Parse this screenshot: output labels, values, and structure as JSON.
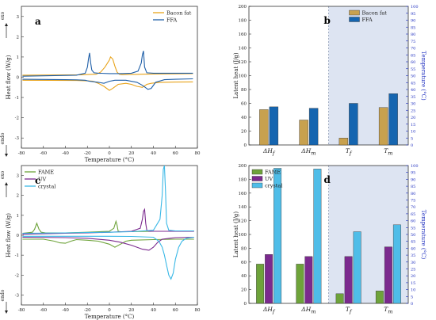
{
  "chart_data": [
    {
      "panel": "a",
      "type": "line",
      "xlabel": "Temperature (°C)",
      "ylabel": "Heat flow (W/g)",
      "exo_label": "exo",
      "endo_label": "endo",
      "xlim": [
        -80,
        80
      ],
      "ylim": [
        -3.5,
        3.5
      ],
      "xticks": [
        -80,
        -60,
        -40,
        -20,
        0,
        20,
        40,
        60,
        80
      ],
      "yticks": [
        -3,
        -2,
        -1,
        0,
        1,
        2,
        3
      ],
      "legend_position": "top-right",
      "series": [
        {
          "name": "Bacon fat",
          "color": "#e8a31a",
          "x": [
            -79,
            -25,
            -18,
            -12,
            -8,
            -4,
            0,
            1,
            3,
            5,
            7,
            9,
            12,
            18,
            24,
            30,
            40,
            60,
            76
          ],
          "y": [
            0.1,
            0.12,
            0.14,
            0.15,
            0.25,
            0.5,
            0.85,
            1.0,
            0.9,
            0.55,
            0.25,
            0.15,
            0.13,
            0.14,
            0.14,
            0.15,
            0.16,
            0.17,
            0.18
          ]
        },
        {
          "name": "Bacon fat",
          "color": "#e8a31a",
          "x": [
            -79,
            -30,
            -20,
            -15,
            -10,
            -5,
            0,
            3,
            8,
            15,
            20,
            25,
            30,
            34,
            38,
            45,
            60,
            76
          ],
          "y": [
            -0.15,
            -0.16,
            -0.18,
            -0.2,
            -0.3,
            -0.45,
            -0.65,
            -0.55,
            -0.35,
            -0.3,
            -0.35,
            -0.45,
            -0.5,
            -0.35,
            -0.3,
            -0.26,
            -0.24,
            -0.23
          ]
        },
        {
          "name": "FFA",
          "color": "#1f5fa8",
          "x": [
            -79,
            -30,
            -22,
            -20,
            -19,
            -18,
            -17,
            -16,
            -14,
            -10,
            0,
            10,
            20,
            26,
            29,
            30,
            31,
            32,
            34,
            40,
            60,
            76
          ],
          "y": [
            0.05,
            0.1,
            0.2,
            0.5,
            0.9,
            1.2,
            0.7,
            0.35,
            0.22,
            0.2,
            0.18,
            0.18,
            0.2,
            0.3,
            0.7,
            1.1,
            1.3,
            0.5,
            0.22,
            0.2,
            0.2,
            0.2
          ]
        },
        {
          "name": "FFA",
          "color": "#1f5fa8",
          "x": [
            -79,
            -40,
            -30,
            -22,
            -18,
            -10,
            -5,
            0,
            5,
            15,
            25,
            30,
            35,
            38,
            42,
            50,
            60,
            76
          ],
          "y": [
            -0.1,
            -0.12,
            -0.13,
            -0.15,
            -0.2,
            -0.25,
            -0.3,
            -0.2,
            -0.15,
            -0.15,
            -0.25,
            -0.4,
            -0.6,
            -0.55,
            -0.25,
            -0.12,
            -0.1,
            -0.08
          ]
        }
      ]
    },
    {
      "panel": "b",
      "type": "bar",
      "ylabel": "Latent heat (J/g)",
      "y2label": "Temperature (°C)",
      "ylim": [
        0,
        200
      ],
      "y2lim": [
        0,
        100
      ],
      "yticks": [
        0,
        20,
        40,
        60,
        80,
        100,
        120,
        140,
        160,
        180,
        200
      ],
      "y2ticks": [
        0,
        5,
        10,
        15,
        20,
        25,
        30,
        35,
        40,
        45,
        50,
        55,
        60,
        65,
        70,
        75,
        80,
        85,
        90,
        95,
        100
      ],
      "categories": [
        "ΔH_f",
        "ΔH_m",
        "T_f",
        "T_m"
      ],
      "category_axis": [
        "left",
        "left",
        "right",
        "right"
      ],
      "legend_position": "top-right",
      "series": [
        {
          "name": "Bacon fat",
          "color": "#c8a14e",
          "values": [
            51,
            36,
            5,
            27
          ]
        },
        {
          "name": "FFA",
          "color": "#1565b0",
          "values": [
            55,
            53,
            30,
            37
          ]
        }
      ]
    },
    {
      "panel": "c",
      "type": "line",
      "xlabel": "Temperature (°C)",
      "ylabel": "Heat flow (W/g)",
      "exo_label": "exo",
      "endo_label": "endo",
      "xlim": [
        -80,
        80
      ],
      "ylim": [
        -3.5,
        3.5
      ],
      "xticks": [
        -80,
        -60,
        -40,
        -20,
        0,
        20,
        40,
        60,
        80
      ],
      "yticks": [
        -3,
        -2,
        -1,
        0,
        1,
        2,
        3
      ],
      "legend_position": "top-left",
      "series": [
        {
          "name": "FAME",
          "color": "#6ea33a",
          "x": [
            -79,
            -70,
            -68,
            -66,
            -64,
            -62,
            -58,
            -40,
            -20,
            0,
            4,
            6,
            7,
            8,
            10,
            20,
            40,
            60,
            77
          ],
          "y": [
            0.1,
            0.15,
            0.3,
            0.6,
            0.3,
            0.15,
            0.12,
            0.12,
            0.15,
            0.2,
            0.35,
            0.7,
            0.5,
            0.2,
            0.18,
            0.18,
            0.2,
            0.2,
            0.22
          ]
        },
        {
          "name": "FAME",
          "color": "#6ea33a",
          "x": [
            -79,
            -60,
            -50,
            -45,
            -40,
            -35,
            -30,
            -20,
            -10,
            0,
            5,
            10,
            15,
            20,
            40,
            60,
            77
          ],
          "y": [
            -0.2,
            -0.2,
            -0.3,
            -0.38,
            -0.4,
            -0.3,
            -0.22,
            -0.25,
            -0.3,
            -0.45,
            -0.6,
            -0.45,
            -0.3,
            -0.25,
            -0.22,
            -0.2,
            -0.2
          ]
        },
        {
          "name": "UV",
          "color": "#7b2a8e",
          "x": [
            -79,
            -40,
            -20,
            0,
            20,
            28,
            30,
            31,
            32,
            33,
            34,
            36,
            40,
            60,
            77
          ],
          "y": [
            0.05,
            0.1,
            0.12,
            0.15,
            0.2,
            0.35,
            0.8,
            1.2,
            1.3,
            0.6,
            0.25,
            0.2,
            0.2,
            0.2,
            0.2
          ]
        },
        {
          "name": "UV",
          "color": "#7b2a8e",
          "x": [
            -79,
            -40,
            -20,
            0,
            10,
            20,
            30,
            36,
            40,
            44,
            48,
            55,
            60,
            77
          ],
          "y": [
            -0.1,
            -0.12,
            -0.15,
            -0.25,
            -0.35,
            -0.5,
            -0.7,
            -0.75,
            -0.6,
            -0.35,
            -0.2,
            -0.15,
            -0.12,
            -0.1
          ]
        },
        {
          "name": "crystal",
          "color": "#3ab8e6",
          "x": [
            -79,
            -40,
            -20,
            0,
            20,
            40,
            46,
            48,
            49,
            50,
            51,
            52,
            54,
            60,
            77
          ],
          "y": [
            0.1,
            0.12,
            0.14,
            0.15,
            0.18,
            0.25,
            0.8,
            2.0,
            3.3,
            3.5,
            2.2,
            0.6,
            0.25,
            0.22,
            0.22
          ]
        },
        {
          "name": "crystal",
          "color": "#3ab8e6",
          "x": [
            -79,
            -40,
            -20,
            0,
            20,
            40,
            45,
            48,
            50,
            52,
            54,
            56,
            58,
            60,
            63,
            66,
            70,
            77
          ],
          "y": [
            -0.05,
            -0.05,
            -0.05,
            -0.05,
            -0.06,
            -0.1,
            -0.3,
            -0.6,
            -1.0,
            -1.5,
            -2.0,
            -2.2,
            -1.9,
            -1.2,
            -0.6,
            -0.3,
            -0.15,
            -0.1
          ]
        }
      ]
    },
    {
      "panel": "d",
      "type": "bar",
      "ylabel": "Latent heat (J/g)",
      "y2label": "Temperature (°C)",
      "ylim": [
        0,
        200
      ],
      "y2lim": [
        0,
        100
      ],
      "yticks": [
        0,
        20,
        40,
        60,
        80,
        100,
        120,
        140,
        160,
        180,
        200
      ],
      "y2ticks": [
        0,
        5,
        10,
        15,
        20,
        25,
        30,
        35,
        40,
        45,
        50,
        55,
        60,
        65,
        70,
        75,
        80,
        85,
        90,
        95,
        100
      ],
      "categories": [
        "ΔH_f",
        "ΔH_m",
        "T_f",
        "T_m"
      ],
      "category_axis": [
        "left",
        "left",
        "right",
        "right"
      ],
      "legend_position": "top-left",
      "series": [
        {
          "name": "FAME",
          "color": "#6ea33a",
          "values": [
            57,
            57,
            7,
            9
          ]
        },
        {
          "name": "UV",
          "color": "#7b2a8e",
          "values": [
            71,
            68,
            34,
            41
          ]
        },
        {
          "name": "crystal",
          "color": "#4fbde8",
          "values": [
            196,
            195,
            52,
            57
          ]
        }
      ]
    }
  ]
}
